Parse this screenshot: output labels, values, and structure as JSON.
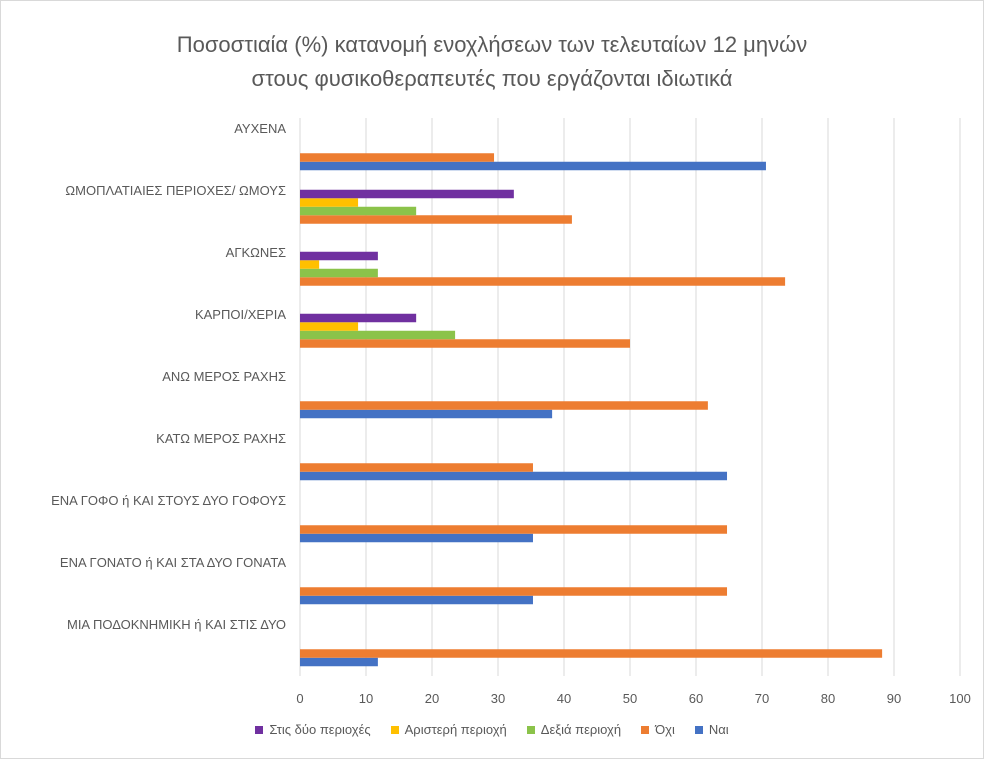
{
  "chart_data": {
    "type": "bar",
    "orientation": "horizontal",
    "title_lines": [
      "Ποσοστιαία (%) κατανομή ενοχλήσεων των τελευταίων 12 μηνών",
      "στους φυσικοθεραπευτές που εργάζονται ιδιωτικά"
    ],
    "categories": [
      "ΑΥΧΕΝΑ",
      "ΩΜΟΠΛΑΤΙΑΙΕΣ ΠΕΡΙΟΧΕΣ/ ΩΜΟΥΣ",
      "ΑΓΚΩΝΕΣ",
      "ΚΑΡΠΟΙ/ΧΕΡΙΑ",
      "ΑΝΩ ΜΕΡΟΣ ΡΑΧΗΣ",
      "ΚΑΤΩ ΜΕΡΟΣ ΡΑΧΗΣ",
      "ΕΝΑ ΓΟΦΟ ή ΚΑΙ ΣΤΟΥΣ ΔΥΟ ΓΟΦΟΥΣ",
      "ΕΝΑ ΓΟΝΑΤΟ ή ΚΑΙ ΣΤΑ ΔΥΟ ΓΟΝΑΤΑ",
      "ΜΙΑ ΠΟΔΟΚΝΗΜΙΚΗ ή ΚΑΙ ΣΤΙΣ ΔΥΟ"
    ],
    "series": [
      {
        "name": "Ναι",
        "color": "#4472C4",
        "values": [
          70.6,
          null,
          null,
          null,
          38.2,
          64.7,
          35.3,
          35.3,
          11.8
        ]
      },
      {
        "name": "Όχι",
        "color": "#ED7D31",
        "values": [
          29.4,
          41.2,
          73.5,
          50.0,
          61.8,
          35.3,
          64.7,
          64.7,
          88.2
        ]
      },
      {
        "name": "Δεξιά περιοχή",
        "color": "#8BC34A",
        "values": [
          null,
          17.6,
          11.8,
          23.5,
          null,
          null,
          null,
          null,
          null
        ]
      },
      {
        "name": "Αριστερή περιοχή",
        "color": "#FFC000",
        "values": [
          null,
          8.8,
          2.9,
          8.8,
          null,
          null,
          null,
          null,
          null
        ]
      },
      {
        "name": "Στις δύο περιοχές",
        "color": "#7030A0",
        "values": [
          null,
          32.4,
          11.8,
          17.6,
          null,
          null,
          null,
          null,
          null
        ]
      }
    ],
    "legend_order": [
      "Στις δύο περιοχές",
      "Αριστερή περιοχή",
      "Δεξιά περιοχή",
      "Όχι",
      "Ναι"
    ],
    "xlim": [
      0,
      100
    ],
    "xticks": [
      "0",
      "10",
      "20",
      "30",
      "40",
      "50",
      "60",
      "70",
      "80",
      "90",
      "100"
    ],
    "grid": "vertical",
    "legend_position": "bottom"
  }
}
